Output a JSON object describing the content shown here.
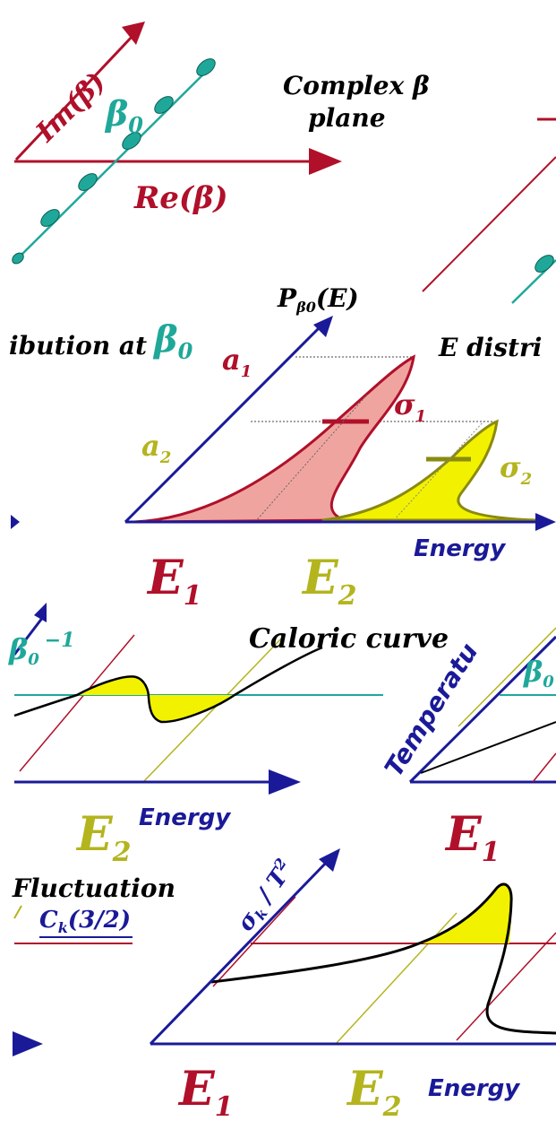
{
  "colors": {
    "red": "#b0102a",
    "teal": "#1fa89a",
    "blue": "#1a1a99",
    "olive": "#b4b41e",
    "black": "#000000",
    "yellow": "#f2f200",
    "salmon": "#f0a4a0"
  },
  "panel1": {
    "title_line1": "Complex β",
    "title_line2": "plane",
    "im_axis": "Im(β)",
    "re_axis": "Re(β)",
    "beta0": "β0",
    "beta0_base": "β",
    "beta0_sub": "0"
  },
  "panel2": {
    "y_axis_label": "Pβ0(E)",
    "y_axis_label_main": "P",
    "y_axis_label_sub": "β0",
    "y_axis_label_tail": "(E)",
    "left_fragment": "ibution at",
    "beta0_base": "β",
    "beta0_sub": "0",
    "right_fragment": "E distri",
    "a1": "a1",
    "a1_base": "a",
    "a1_sub": "1",
    "a2": "a2",
    "a2_base": "a",
    "a2_sub": "2",
    "sigma1": "σ1",
    "sigma1_base": "σ",
    "sigma1_sub": "1",
    "sigma2": "σ2",
    "sigma2_base": "σ",
    "sigma2_sub": "2",
    "x_axis_label": "Energy",
    "e1": "E1",
    "e1_base": "E",
    "e1_sub": "1",
    "e2": "E2",
    "e2_base": "E",
    "e2_sub": "2"
  },
  "panel3": {
    "beta_inverse_fragment": "β0 −1",
    "beta_fragment_base": "β",
    "beta_fragment_sub": "0",
    "beta_fragment_exp": "−1",
    "title": "Caloric curve",
    "x_axis_label": "Energy",
    "e2_base": "E",
    "e2_sub": "2",
    "right_y_axis_label": "Temperatu",
    "right_beta_base": "β",
    "right_beta_sub": "0",
    "e1_base": "E",
    "e1_sub": "1"
  },
  "panel4": {
    "title_fragment": "Fluctuation",
    "ck_label": "Ck(3/2)",
    "ck_base": "C",
    "ck_sub": "k",
    "ck_tail": "(3/2)",
    "y_axis_label": "σk / T²",
    "y_axis_label_text": "σ",
    "y_axis_label_sub": "k",
    "y_axis_label_tail": " / T",
    "y_axis_label_exp": "2",
    "x_axis_label": "Energy",
    "e1_base": "E",
    "e1_sub": "1",
    "e2_base": "E",
    "e2_sub": "2"
  }
}
